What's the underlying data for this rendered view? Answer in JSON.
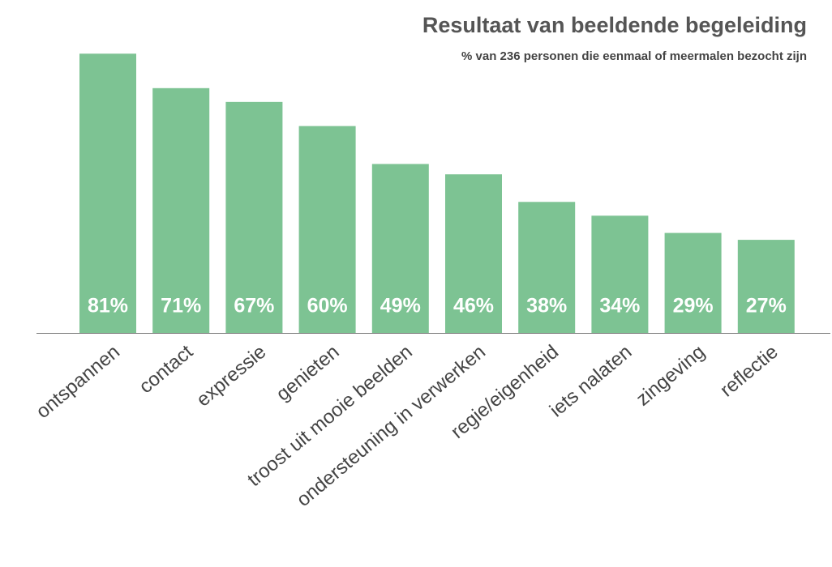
{
  "chart_data": {
    "type": "bar",
    "title": "Resultaat van beeldende begeleiding",
    "subtitle": "% van 236 personen die eenmaal of meermalen bezocht zijn",
    "categories": [
      "ontspannen",
      "contact",
      "expressie",
      "genieten",
      "troost uit mooie beelden",
      "ondersteuning in verwerken",
      "regie/eigenheid",
      "iets nalaten",
      "zingeving",
      "reflectie"
    ],
    "values": [
      81,
      71,
      67,
      60,
      49,
      46,
      38,
      34,
      29,
      27
    ],
    "value_labels": [
      "81%",
      "71%",
      "67%",
      "60%",
      "49%",
      "46%",
      "38%",
      "34%",
      "29%",
      "27%"
    ],
    "color": "#7dc393",
    "ylim": [
      0,
      82
    ]
  }
}
